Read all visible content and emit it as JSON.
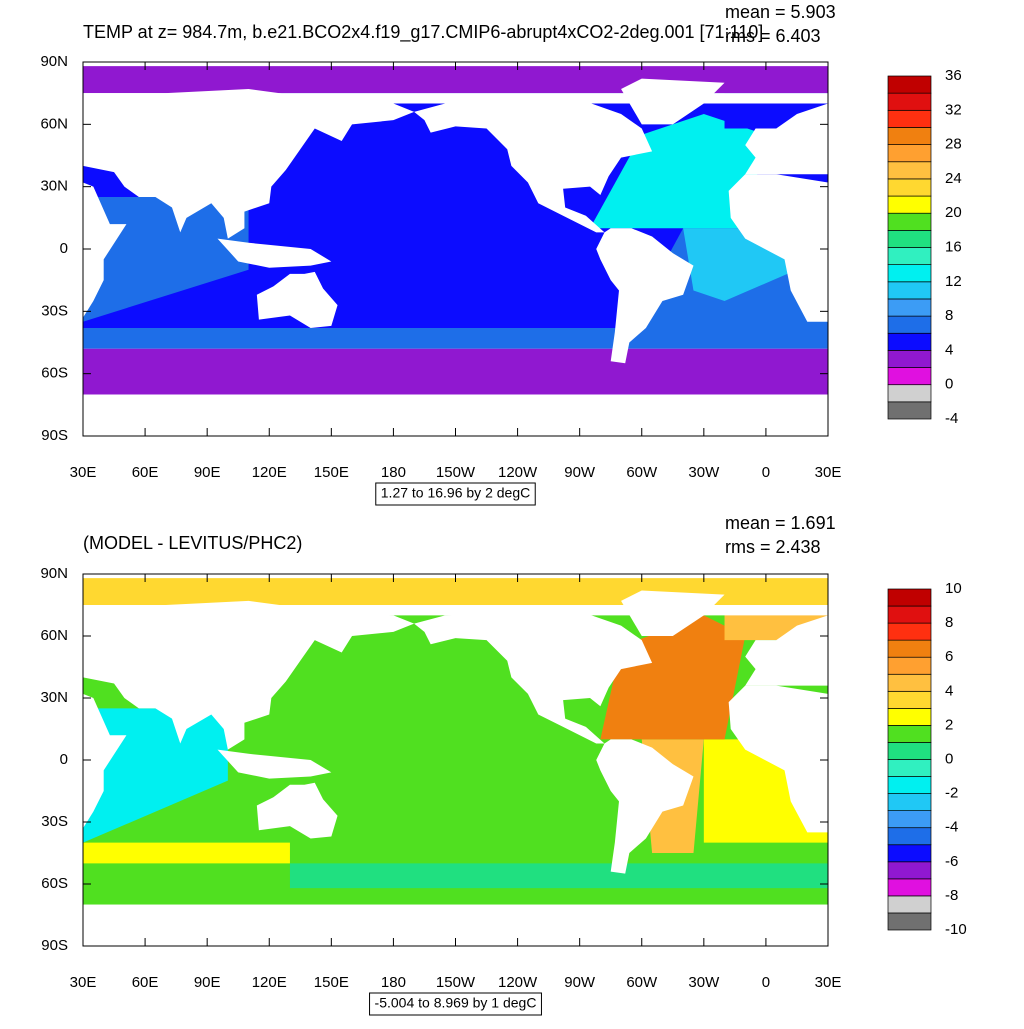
{
  "lat_ticks": [
    "90N",
    "60N",
    "30N",
    "0",
    "30S",
    "60S",
    "90S"
  ],
  "lon_ticks": [
    "30E",
    "60E",
    "90E",
    "120E",
    "150E",
    "180",
    "150W",
    "120W",
    "90W",
    "60W",
    "30W",
    "0",
    "30E"
  ],
  "colorbar_colors": [
    "#707070",
    "#d0d0d0",
    "#e010e0",
    "#9018d0",
    "#0c0cff",
    "#1e6ee8",
    "#3c9cf5",
    "#20c8f5",
    "#00f0f0",
    "#30f0c0",
    "#20e080",
    "#50e020",
    "#ffff00",
    "#ffd830",
    "#ffc040",
    "#ffa030",
    "#f08010",
    "#ff3010",
    "#e01010",
    "#c00000"
  ],
  "panels": [
    {
      "title": "TEMP at z= 984.7m, b.e21.BCO2x4.f19_g17.CMIP6-abrupt4xCO2-2deg.001 [71:110]",
      "mean": "mean = 5.903",
      "rms": "rms = 6.403",
      "range": "1.27 to 16.96 by 2 degC",
      "colorbar_labels": [
        -4,
        0,
        4,
        8,
        12,
        16,
        20,
        24,
        28,
        32,
        36
      ]
    },
    {
      "title": "(MODEL - LEVITUS/PHC2)",
      "mean": "mean = 1.691",
      "rms": "rms = 2.438",
      "range": "-5.004 to 8.969 by 1 degC",
      "colorbar_labels": [
        -10,
        -8,
        -6,
        -4,
        -2,
        0,
        2,
        4,
        6,
        8,
        10
      ]
    }
  ]
}
